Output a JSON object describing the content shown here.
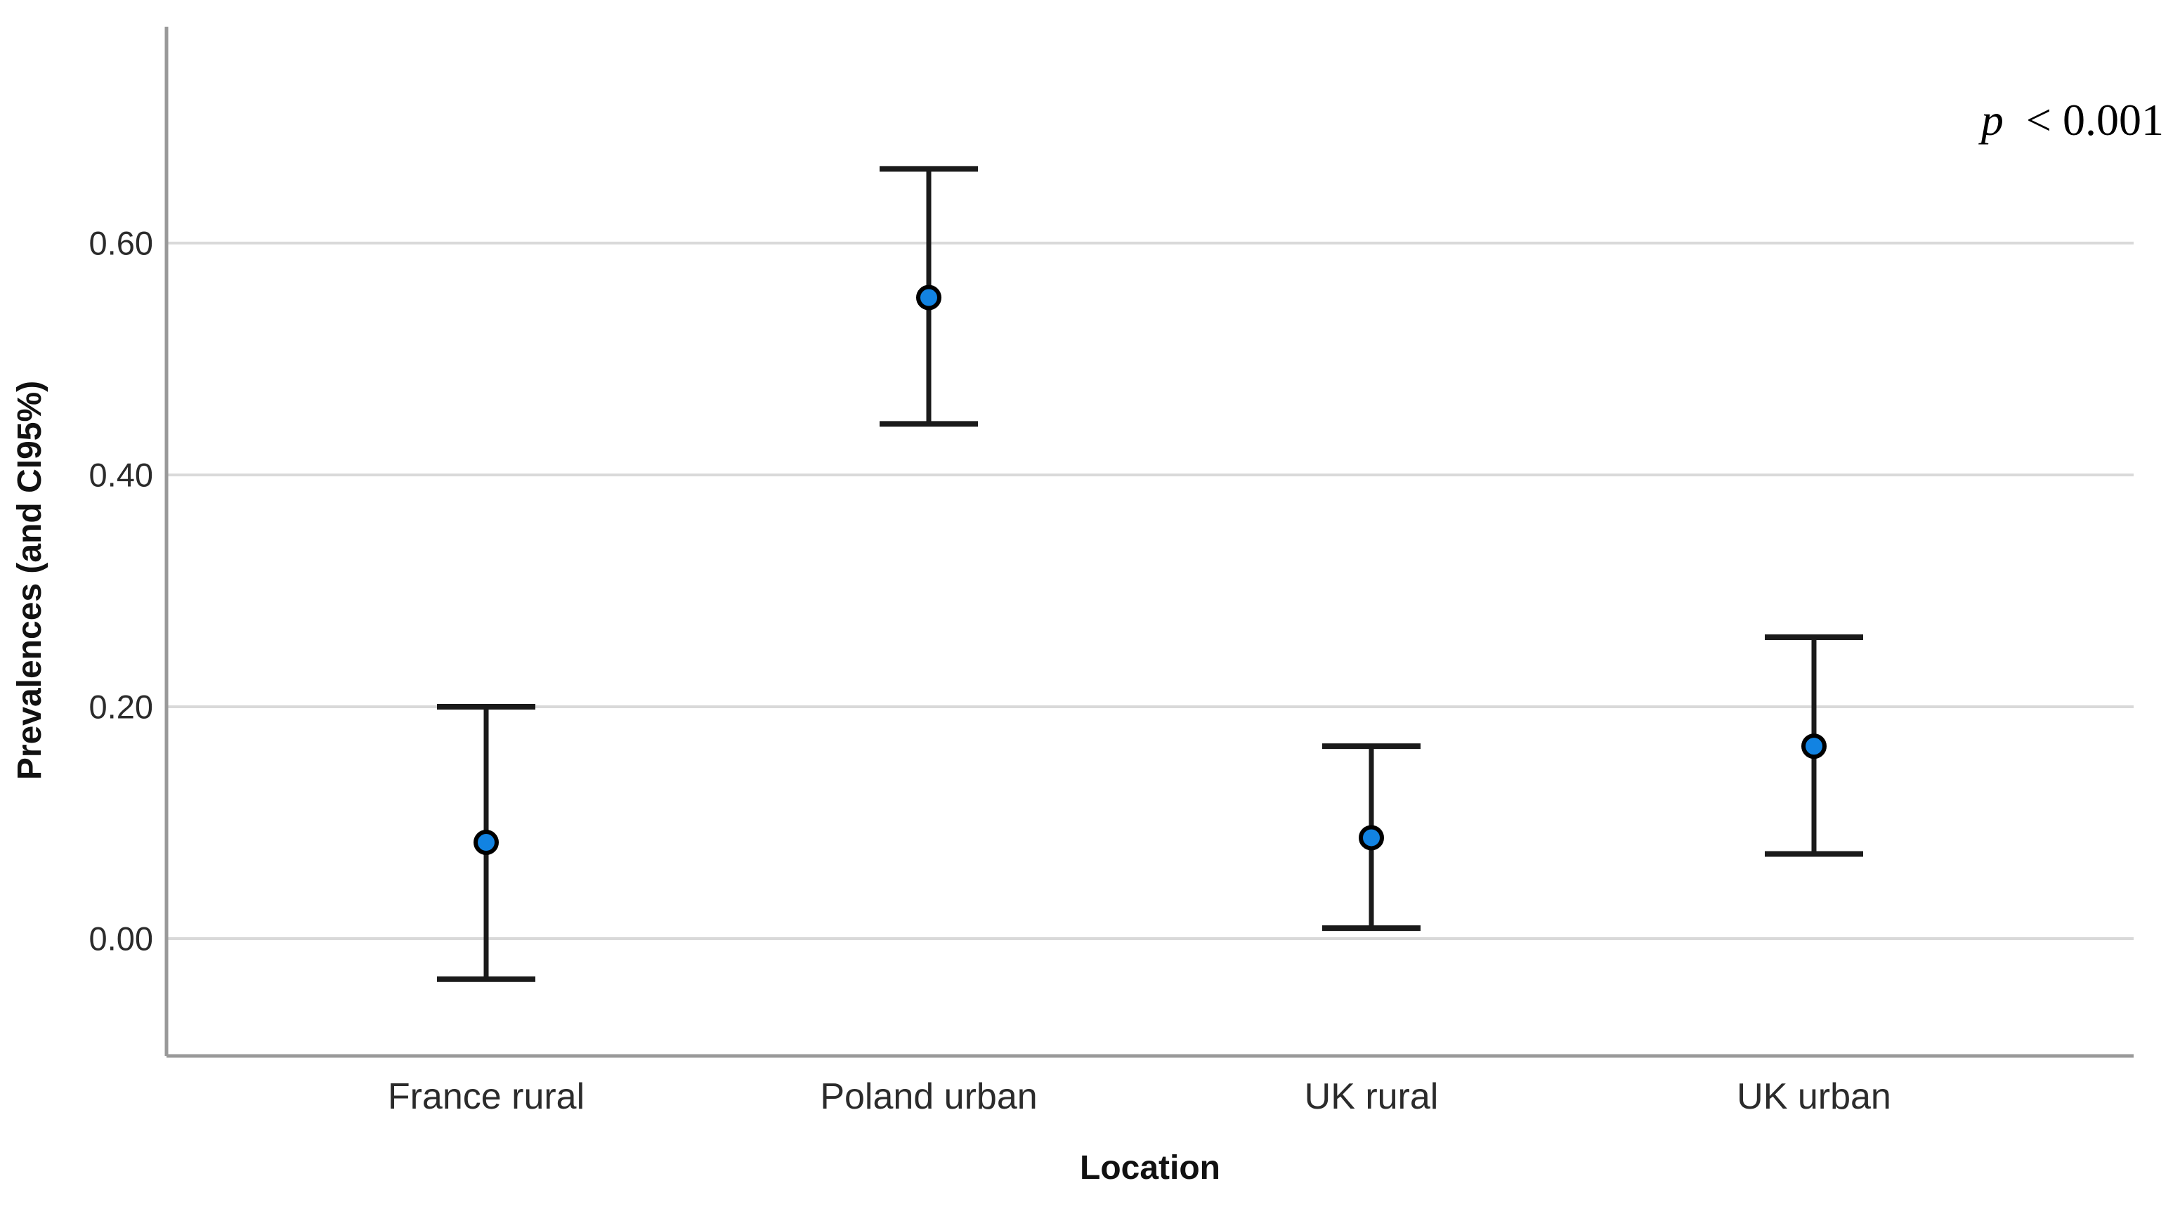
{
  "annotation": {
    "p_symbol": "p",
    "rest": "< 0.001"
  },
  "chart_data": {
    "type": "scatter",
    "subtype": "point-estimate-with-95ci-error-bars",
    "title": "",
    "xlabel": "Location",
    "ylabel": "Prevalences (and CI95%)",
    "annotation_text": "p < 0.001",
    "categories": [
      "France rural",
      "Poland urban",
      "UK rural",
      "UK urban"
    ],
    "series": [
      {
        "name": "Prevalence",
        "values": [
          0.083,
          0.553,
          0.087,
          0.166
        ],
        "ci_lower": [
          -0.035,
          0.444,
          0.009,
          0.073
        ],
        "ci_upper": [
          0.2,
          0.664,
          0.166,
          0.26
        ]
      }
    ],
    "yticks": [
      0.0,
      0.2,
      0.4,
      0.6
    ],
    "ytick_labels": [
      "0.00",
      "0.20",
      "0.40",
      "0.60"
    ],
    "ylim": [
      -0.1,
      0.79
    ],
    "grid": true,
    "legend": "none",
    "colors": {
      "marker_fill": "#1283E2",
      "marker_stroke": "#000000",
      "errorbar": "#1a1a1a",
      "gridline": "#d9d9d9",
      "axis": "#999999",
      "background": "#ffffff"
    }
  }
}
